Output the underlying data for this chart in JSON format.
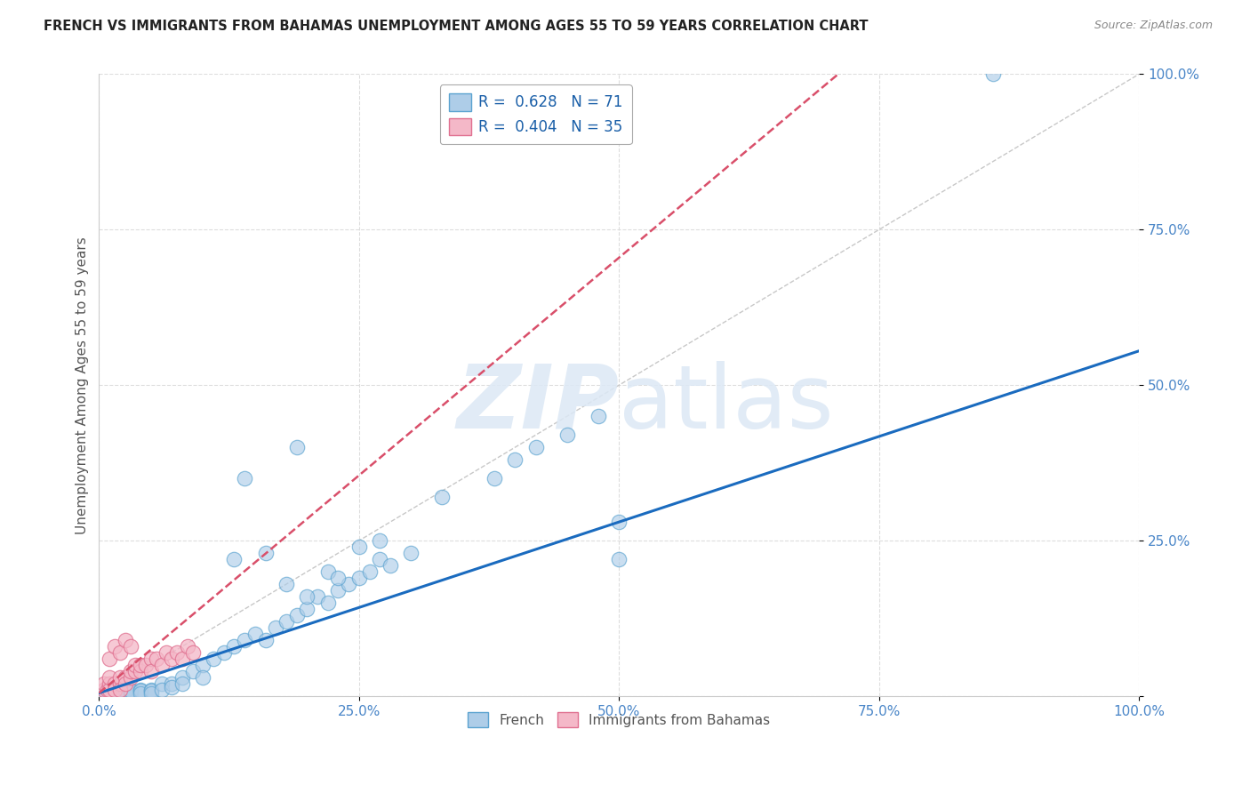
{
  "title": "FRENCH VS IMMIGRANTS FROM BAHAMAS UNEMPLOYMENT AMONG AGES 55 TO 59 YEARS CORRELATION CHART",
  "source": "Source: ZipAtlas.com",
  "ylabel": "Unemployment Among Ages 55 to 59 years",
  "xlim": [
    0,
    1
  ],
  "ylim": [
    0,
    1
  ],
  "xticks": [
    0.0,
    0.25,
    0.5,
    0.75,
    1.0
  ],
  "yticks": [
    0.0,
    0.25,
    0.5,
    0.75,
    1.0
  ],
  "xtick_labels": [
    "0.0%",
    "25.0%",
    "50.0%",
    "75.0%",
    "100.0%"
  ],
  "ytick_labels": [
    "",
    "25.0%",
    "50.0%",
    "75.0%",
    "100.0%"
  ],
  "french_color": "#aecde8",
  "french_edge": "#5ba3d0",
  "bahamas_color": "#f4b8c8",
  "bahamas_edge": "#e07090",
  "trend_french_color": "#1a6bbf",
  "trend_bahamas_color": "#d94f6a",
  "diag_color": "#c8c8c8",
  "background_color": "#ffffff",
  "french_slope": 0.55,
  "french_intercept": 0.005,
  "bahamas_slope": 1.4,
  "bahamas_intercept": 0.005,
  "french_x": [
    0.005,
    0.008,
    0.01,
    0.01,
    0.01,
    0.012,
    0.015,
    0.015,
    0.015,
    0.02,
    0.02,
    0.02,
    0.02,
    0.025,
    0.025,
    0.03,
    0.03,
    0.03,
    0.04,
    0.04,
    0.04,
    0.05,
    0.05,
    0.05,
    0.06,
    0.06,
    0.07,
    0.07,
    0.08,
    0.08,
    0.09,
    0.1,
    0.1,
    0.11,
    0.12,
    0.13,
    0.14,
    0.15,
    0.16,
    0.17,
    0.18,
    0.19,
    0.2,
    0.21,
    0.22,
    0.23,
    0.24,
    0.25,
    0.26,
    0.27,
    0.28,
    0.3,
    0.13,
    0.18,
    0.22,
    0.25,
    0.2,
    0.16,
    0.23,
    0.27,
    0.14,
    0.19,
    0.5,
    0.5,
    0.33,
    0.38,
    0.4,
    0.42,
    0.45,
    0.48,
    0.86
  ],
  "french_y": [
    0.005,
    0.008,
    0.01,
    0.01,
    0.005,
    0.01,
    0.01,
    0.008,
    0.005,
    0.01,
    0.01,
    0.008,
    0.005,
    0.01,
    0.008,
    0.01,
    0.005,
    0.008,
    0.01,
    0.008,
    0.005,
    0.01,
    0.008,
    0.005,
    0.02,
    0.01,
    0.02,
    0.015,
    0.03,
    0.02,
    0.04,
    0.05,
    0.03,
    0.06,
    0.07,
    0.08,
    0.09,
    0.1,
    0.09,
    0.11,
    0.12,
    0.13,
    0.14,
    0.16,
    0.15,
    0.17,
    0.18,
    0.19,
    0.2,
    0.22,
    0.21,
    0.23,
    0.22,
    0.18,
    0.2,
    0.24,
    0.16,
    0.23,
    0.19,
    0.25,
    0.35,
    0.4,
    0.28,
    0.22,
    0.32,
    0.35,
    0.38,
    0.4,
    0.42,
    0.45,
    1.0
  ],
  "bahamas_x": [
    0.005,
    0.005,
    0.008,
    0.01,
    0.01,
    0.01,
    0.015,
    0.015,
    0.02,
    0.02,
    0.02,
    0.025,
    0.025,
    0.03,
    0.03,
    0.035,
    0.035,
    0.04,
    0.04,
    0.045,
    0.05,
    0.05,
    0.055,
    0.06,
    0.065,
    0.07,
    0.075,
    0.08,
    0.085,
    0.09,
    0.01,
    0.015,
    0.02,
    0.025,
    0.03
  ],
  "bahamas_y": [
    0.01,
    0.02,
    0.01,
    0.02,
    0.01,
    0.03,
    0.02,
    0.01,
    0.02,
    0.03,
    0.01,
    0.03,
    0.02,
    0.03,
    0.04,
    0.04,
    0.05,
    0.04,
    0.05,
    0.05,
    0.06,
    0.04,
    0.06,
    0.05,
    0.07,
    0.06,
    0.07,
    0.06,
    0.08,
    0.07,
    0.06,
    0.08,
    0.07,
    0.09,
    0.08
  ]
}
